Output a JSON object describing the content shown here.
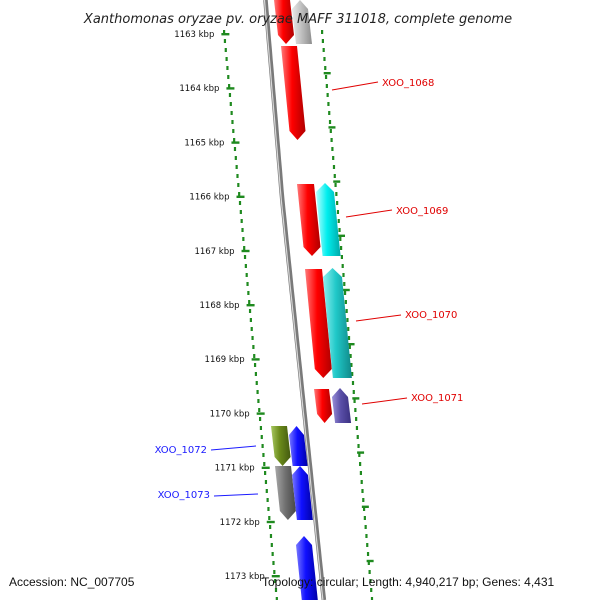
{
  "title": "Xanthomonas oryzae pv. oryzae MAFF 311018, complete genome",
  "footer": {
    "accession": "Accession: NC_007705",
    "topology": "Topology: circular; Length: 4,940,217 bp; Genes: 4,431"
  },
  "scale": {
    "ticks": [
      "1163 kbp",
      "1164 kbp",
      "1165 kbp",
      "1166 kbp",
      "1167 kbp",
      "1168 kbp",
      "1169 kbp",
      "1170 kbp",
      "1171 kbp",
      "1172 kbp",
      "1173 kbp"
    ]
  },
  "colors": {
    "backbone": "#7a7a7a",
    "scale_dots": "#1f8a1f",
    "label_red": "#e00000",
    "label_blue": "#1a1aff"
  },
  "genes": [
    {
      "label": "",
      "strand": "forward",
      "color": "#ff0000"
    },
    {
      "label": "",
      "strand": "reverse",
      "color": "#b8b8b8"
    },
    {
      "label": "XOO_1068",
      "strand": "forward",
      "color": "#ff0000"
    },
    {
      "label": "XOO_1069",
      "strand": "forward",
      "color": "#ff0000"
    },
    {
      "label": "",
      "strand": "reverse",
      "color": "#00f0f0"
    },
    {
      "label": "XOO_1070",
      "strand": "forward",
      "color": "#ff0000"
    },
    {
      "label": "",
      "strand": "reverse",
      "color": "#22cccc"
    },
    {
      "label": "XOO_1071",
      "strand": "forward",
      "color": "#ee0000"
    },
    {
      "label": "",
      "strand": "reverse",
      "color": "#5a4fa8"
    },
    {
      "label": "XOO_1072",
      "strand": "forward",
      "color": "#6a8a1a"
    },
    {
      "label": "",
      "strand": "reverse",
      "color": "#1010ff"
    },
    {
      "label": "XOO_1073",
      "strand": "forward",
      "color": "#707070"
    },
    {
      "label": "",
      "strand": "reverse",
      "color": "#1010ff"
    },
    {
      "label": "",
      "strand": "reverse",
      "color": "#1010ff"
    }
  ]
}
